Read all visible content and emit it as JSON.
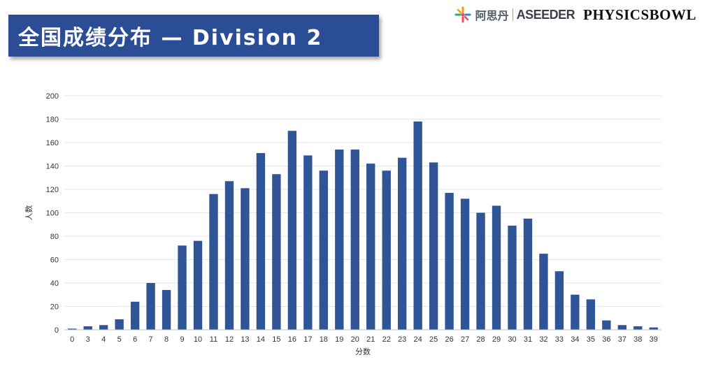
{
  "title": "全国成绩分布 — Division 2",
  "logos": {
    "asidan_text": "阿思丹",
    "aseeder_text": "ASEEDER",
    "physicsbowl_text": "PHYSICSBOWL"
  },
  "colors": {
    "banner": "#2b4d96",
    "bar": "#2f5597",
    "grid": "#e6e6e6"
  },
  "chart_data": {
    "type": "bar",
    "xlabel": "分数",
    "ylabel": "人数",
    "ylim": [
      0,
      200
    ],
    "yticks": [
      0,
      20,
      40,
      60,
      80,
      100,
      120,
      140,
      160,
      180,
      200
    ],
    "grid": true,
    "categories": [
      "0",
      "3",
      "4",
      "5",
      "6",
      "7",
      "8",
      "9",
      "10",
      "11",
      "12",
      "13",
      "14",
      "15",
      "16",
      "17",
      "18",
      "19",
      "20",
      "21",
      "22",
      "23",
      "24",
      "25",
      "26",
      "27",
      "28",
      "29",
      "30",
      "31",
      "32",
      "33",
      "34",
      "35",
      "36",
      "37",
      "38",
      "39"
    ],
    "values": [
      1,
      3,
      4,
      9,
      24,
      40,
      34,
      72,
      76,
      116,
      127,
      121,
      151,
      133,
      170,
      149,
      136,
      154,
      154,
      142,
      136,
      147,
      178,
      143,
      117,
      112,
      100,
      106,
      89,
      95,
      65,
      50,
      30,
      26,
      8,
      4,
      3,
      2
    ]
  }
}
